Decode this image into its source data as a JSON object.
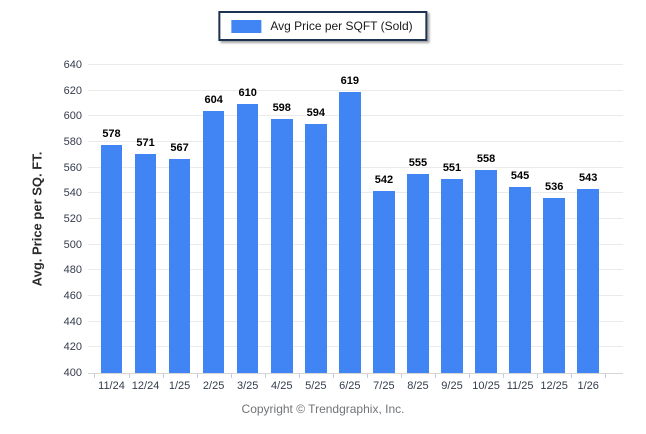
{
  "chart_data": {
    "type": "bar",
    "title": "",
    "categories": [
      "11/24",
      "12/24",
      "1/25",
      "2/25",
      "3/25",
      "4/25",
      "5/25",
      "6/25",
      "7/25",
      "8/25",
      "9/25",
      "10/25",
      "11/25",
      "12/25",
      "1/26"
    ],
    "series": [
      {
        "name": "Avg Price per SQFT (Sold)",
        "color": "#4185f4",
        "values": [
          578,
          571,
          567,
          604,
          610,
          598,
          594,
          619,
          542,
          555,
          551,
          558,
          545,
          536,
          543
        ]
      }
    ],
    "xlabel": "",
    "ylabel": "Avg. Price per SQ. FT.",
    "ylim": [
      400,
      640
    ],
    "yticks": [
      400,
      420,
      440,
      460,
      480,
      500,
      520,
      540,
      560,
      580,
      600,
      620,
      640
    ],
    "grid": true,
    "legend_position": "top-center",
    "value_labels_shown": true
  },
  "legend": {
    "label": "Avg Price per SQFT (Sold)",
    "swatch_color": "#4185f4"
  },
  "footer": {
    "copyright": "Copyright © Trendgraphix, Inc."
  },
  "colors": {
    "bar": "#4185f4",
    "gridline": "#ebebeb",
    "axis_line": "#d6d6d6",
    "tick_text": "#333c4c",
    "value_text": "#000000",
    "legend_border": "#1d3150",
    "copyright_text": "#717477"
  }
}
